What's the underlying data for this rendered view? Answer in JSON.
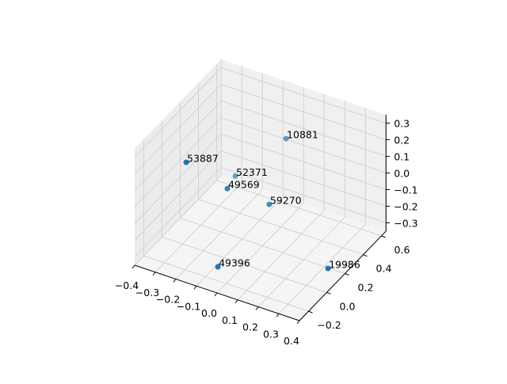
{
  "chart_data": {
    "type": "scatter",
    "projection": "3d",
    "title": "",
    "xlabel": "",
    "ylabel": "",
    "zlabel": "",
    "xlim": [
      -0.4,
      0.4
    ],
    "ylim": [
      -0.3,
      0.65
    ],
    "zlim": [
      -0.35,
      0.35
    ],
    "xticks": [
      "−0.4",
      "−0.3",
      "−0.2",
      "−0.1",
      "0.0",
      "0.1",
      "0.2",
      "0.3",
      "0.4"
    ],
    "xtick_values": [
      -0.4,
      -0.3,
      -0.2,
      -0.1,
      0.0,
      0.1,
      0.2,
      0.3,
      0.4
    ],
    "yticks": [
      "−0.2",
      "0.0",
      "0.2",
      "0.4",
      "0.6"
    ],
    "ytick_values": [
      -0.2,
      0.0,
      0.2,
      0.4,
      0.6
    ],
    "zticks": [
      "−0.3",
      "−0.2",
      "−0.1",
      "0.0",
      "0.1",
      "0.2",
      "0.3"
    ],
    "ztick_values": [
      -0.3,
      -0.2,
      -0.1,
      0.0,
      0.1,
      0.2,
      0.3
    ],
    "grid": true,
    "marker_color": "#1f77b4",
    "points": [
      {
        "label": "10881",
        "x": -0.019,
        "y": 0.5,
        "z": 0.117
      },
      {
        "label": "53887",
        "x": -0.194,
        "y": -0.2,
        "z": 0.298
      },
      {
        "label": "52371",
        "x": -0.221,
        "y": 0.4,
        "z": -0.136
      },
      {
        "label": "49569",
        "x": -0.127,
        "y": 0.1,
        "z": -0.002
      },
      {
        "label": "59270",
        "x": -0.012,
        "y": 0.3,
        "z": -0.162
      },
      {
        "label": "49396",
        "x": -0.06,
        "y": -0.155,
        "z": -0.3
      },
      {
        "label": "19986",
        "x": 0.349,
        "y": 0.129,
        "z": -0.3
      }
    ]
  }
}
